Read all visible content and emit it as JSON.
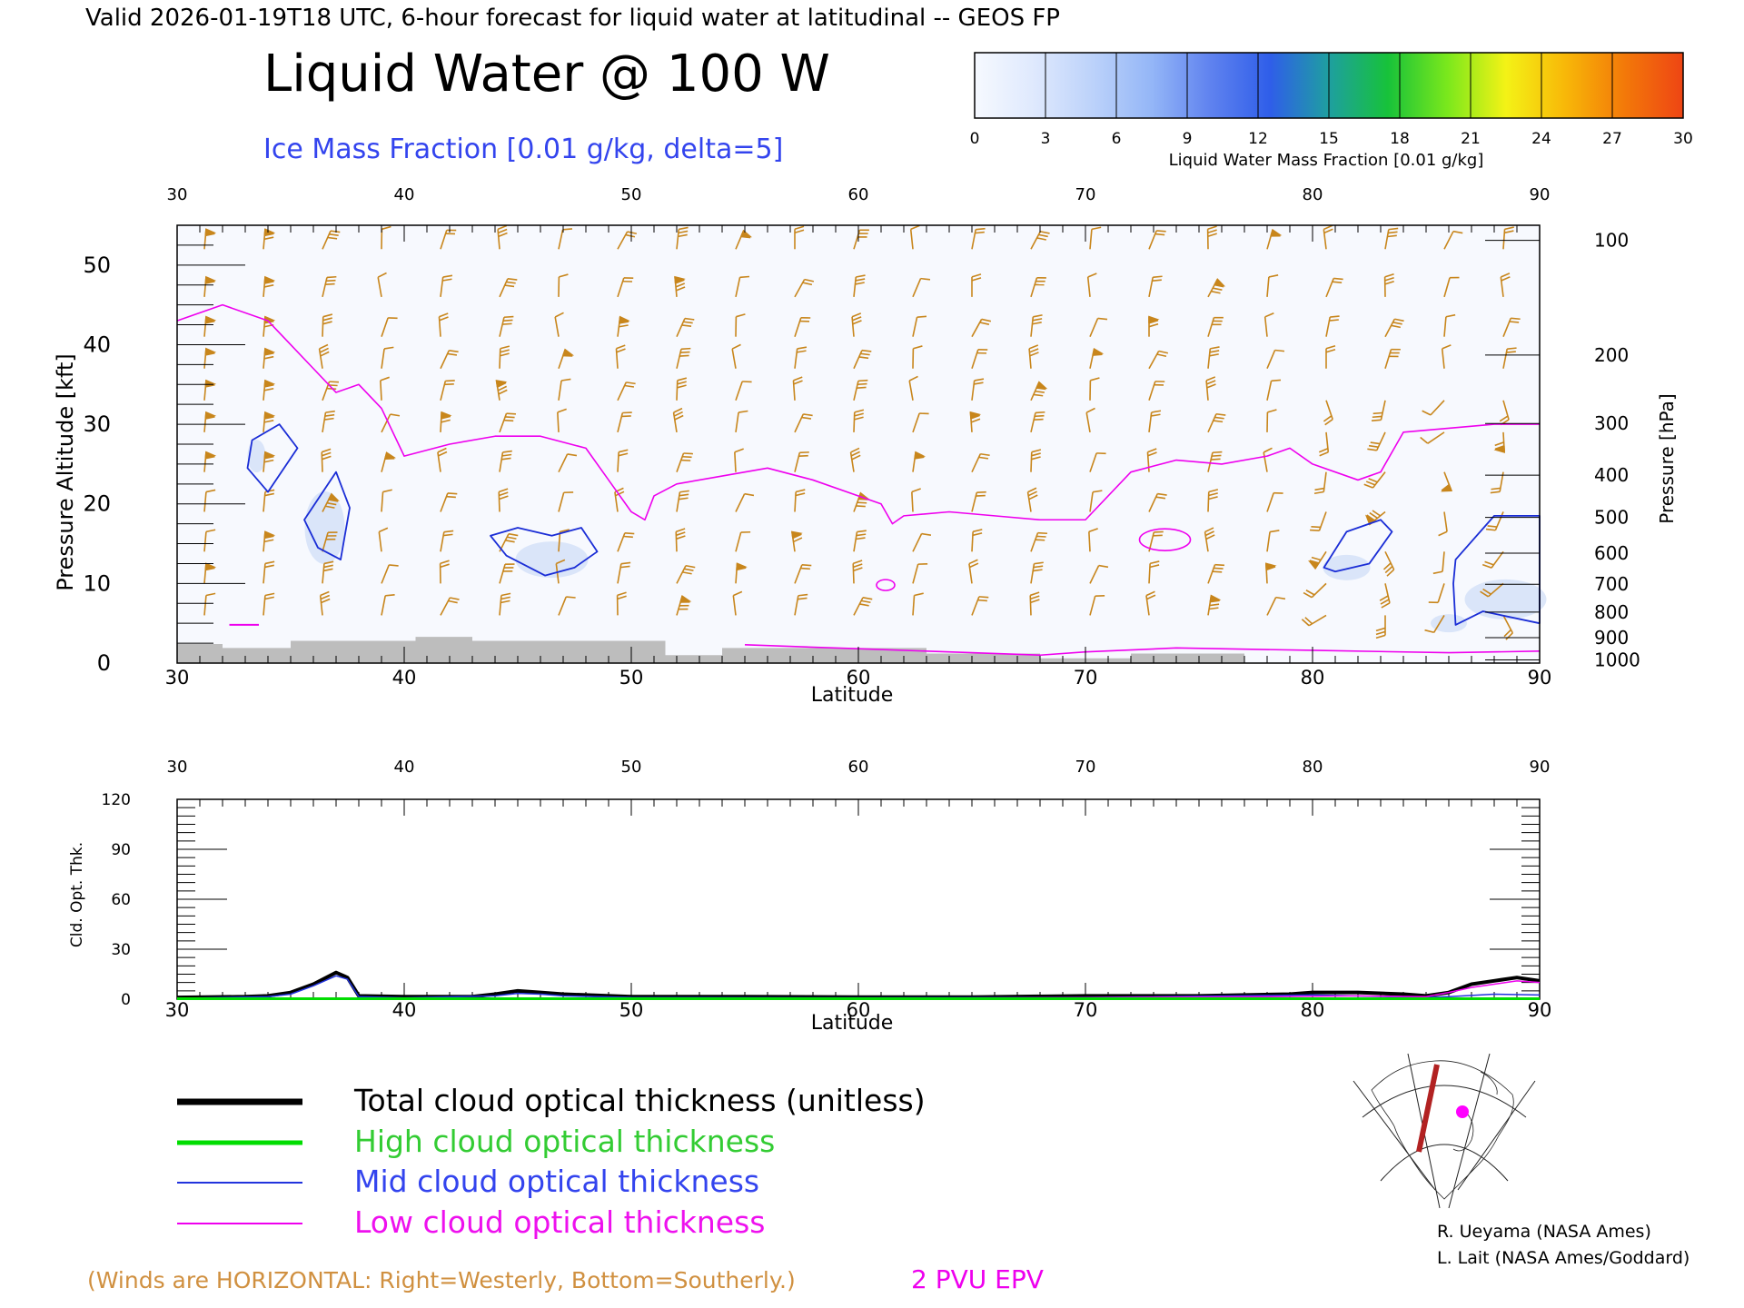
{
  "header": {
    "valid_line": "Valid 2026-01-19T18 UTC, 6-hour forecast for liquid water at latitudinal -- GEOS FP",
    "main_title": "Liquid Water @ 100 W",
    "subtitle": "Ice Mass Fraction [0.01 g/kg, delta=5]"
  },
  "colorbar": {
    "ticks": [
      "0",
      "3",
      "6",
      "9",
      "12",
      "15",
      "18",
      "21",
      "24",
      "27",
      "30"
    ],
    "label": "Liquid Water Mass Fraction [0.01 g/kg]",
    "colors": [
      "#f6f9ff",
      "#dfe9fd",
      "#bcd2fa",
      "#94b6f7",
      "#5f82ef",
      "#2f5ee9",
      "#1e9fa0",
      "#17c23a",
      "#7ae81c",
      "#f4f216",
      "#f8b808",
      "#f37909",
      "#ee4514"
    ]
  },
  "chart_data": [
    {
      "type": "contour-section",
      "xlabel": "Latitude",
      "ylabel": "Pressure Altitude [kft]",
      "y2label": "Pressure [hPa]",
      "xlim": [
        30,
        90
      ],
      "ylim": [
        0,
        55
      ],
      "x_ticks": [
        "30",
        "40",
        "50",
        "60",
        "70",
        "80",
        "90"
      ],
      "y_ticks": [
        "0",
        "10",
        "20",
        "30",
        "40",
        "50"
      ],
      "pressure_ticks": [
        {
          "label": "100",
          "kft": 53.1
        },
        {
          "label": "200",
          "kft": 38.7
        },
        {
          "label": "300",
          "kft": 30.1
        },
        {
          "label": "400",
          "kft": 23.6
        },
        {
          "label": "500",
          "kft": 18.3
        },
        {
          "label": "600",
          "kft": 13.8
        },
        {
          "label": "700",
          "kft": 9.9
        },
        {
          "label": "800",
          "kft": 6.4
        },
        {
          "label": "900",
          "kft": 3.2
        },
        {
          "label": "1000",
          "kft": 0.4
        }
      ],
      "epv_2pvu": [
        [
          30,
          43
        ],
        [
          31,
          44
        ],
        [
          32,
          45
        ],
        [
          34,
          43
        ],
        [
          35,
          40
        ],
        [
          36,
          37
        ],
        [
          37,
          34
        ],
        [
          38,
          35
        ],
        [
          39,
          32
        ],
        [
          40,
          26
        ],
        [
          42,
          27.5
        ],
        [
          44,
          28.5
        ],
        [
          46,
          28.5
        ],
        [
          48,
          27
        ],
        [
          49,
          23
        ],
        [
          50,
          19
        ],
        [
          50.6,
          18
        ],
        [
          51,
          21
        ],
        [
          52,
          22.5
        ],
        [
          54,
          23.5
        ],
        [
          56,
          24.5
        ],
        [
          58,
          23
        ],
        [
          60,
          21
        ],
        [
          61,
          20
        ],
        [
          61.5,
          17.5
        ],
        [
          62,
          18.5
        ],
        [
          64,
          19
        ],
        [
          66,
          18.5
        ],
        [
          68,
          18
        ],
        [
          70,
          18
        ],
        [
          72,
          24
        ],
        [
          74,
          25.5
        ],
        [
          76,
          25
        ],
        [
          78,
          26
        ],
        [
          79,
          27
        ],
        [
          80,
          25
        ],
        [
          82,
          23
        ],
        [
          83,
          24
        ],
        [
          84,
          29
        ],
        [
          86,
          29.5
        ],
        [
          88,
          30
        ],
        [
          90,
          30
        ]
      ],
      "epv_2pvu_low": [
        [
          55,
          2.3
        ],
        [
          60,
          1.8
        ],
        [
          65,
          1.3
        ],
        [
          68,
          1
        ],
        [
          70,
          1.4
        ],
        [
          74,
          1.9
        ],
        [
          80,
          1.6
        ],
        [
          86,
          1.3
        ],
        [
          90,
          1.5
        ]
      ],
      "ice_contours": [
        {
          "label": "5",
          "points": [
            [
              33.3,
              28
            ],
            [
              34.5,
              30
            ],
            [
              35.3,
              27
            ],
            [
              34,
              21.5
            ],
            [
              33.1,
              24.5
            ]
          ]
        },
        {
          "label": "5",
          "points": [
            [
              35.6,
              18
            ],
            [
              37,
              24
            ],
            [
              37.6,
              19.5
            ],
            [
              37.2,
              13
            ],
            [
              36.2,
              14.5
            ]
          ]
        },
        {
          "label": "5",
          "points": [
            [
              43.8,
              16
            ],
            [
              45,
              17
            ],
            [
              46.5,
              16
            ],
            [
              47.8,
              17
            ],
            [
              48.5,
              14
            ],
            [
              47.5,
              12
            ],
            [
              46.2,
              11
            ],
            [
              44.5,
              13.5
            ]
          ]
        },
        {
          "label": "5",
          "points": [
            [
              80.5,
              12
            ],
            [
              81.5,
              16.5
            ],
            [
              83,
              18
            ],
            [
              83.5,
              16.5
            ],
            [
              82.5,
              12.5
            ],
            [
              81,
              11.5
            ]
          ]
        },
        {
          "label": "5",
          "points": [
            [
              86.3,
              13
            ],
            [
              88,
              18.5
            ],
            [
              90,
              18.5
            ],
            [
              90,
              5
            ],
            [
              87.5,
              6.5
            ],
            [
              86.3,
              4.8
            ],
            [
              86.2,
              10
            ]
          ]
        }
      ],
      "terrain": [
        [
          30,
          2.4
        ],
        [
          32,
          2.4
        ],
        [
          32,
          1.9
        ],
        [
          35,
          1.9
        ],
        [
          35,
          2.8
        ],
        [
          40.5,
          2.8
        ],
        [
          40.5,
          3.3
        ],
        [
          43,
          3.3
        ],
        [
          43,
          2.8
        ],
        [
          51.5,
          2.8
        ],
        [
          51.5,
          1
        ],
        [
          54,
          1
        ],
        [
          54,
          1.9
        ],
        [
          63,
          1.9
        ],
        [
          63,
          1.2
        ],
        [
          68,
          1.2
        ],
        [
          68,
          0.6
        ],
        [
          72,
          0.6
        ],
        [
          72,
          1.2
        ],
        [
          77,
          1.2
        ],
        [
          77,
          0
        ],
        [
          90,
          0
        ]
      ],
      "wind_note": "(Winds are HORIZONTAL: Right=Westerly, Bottom=Southerly.)",
      "epv_label": "2 PVU EPV"
    },
    {
      "type": "line",
      "xlabel": "Latitude",
      "ylabel": "Cld. Opt. Thk.",
      "xlim": [
        30,
        90
      ],
      "ylim": [
        0,
        120
      ],
      "x_ticks": [
        "30",
        "40",
        "50",
        "60",
        "70",
        "80",
        "90"
      ],
      "y_ticks": [
        "0",
        "30",
        "60",
        "90",
        "120"
      ],
      "series": [
        {
          "name": "Total cloud optical thickness (unitless)",
          "color": "#000000",
          "width": 4,
          "x": [
            30,
            33,
            34,
            35,
            36,
            37,
            37.5,
            38,
            40,
            43,
            44,
            45,
            46,
            47,
            50,
            55,
            60,
            65,
            70,
            75,
            79,
            80,
            82,
            84,
            85,
            86,
            87,
            88,
            89,
            90
          ],
          "y": [
            1,
            1.5,
            2,
            4,
            9,
            16,
            13,
            2,
            1.5,
            1.5,
            3,
            5,
            4,
            3,
            1.5,
            1.5,
            1.2,
            1.2,
            2,
            2,
            3,
            4,
            4,
            3,
            2,
            4,
            9,
            11,
            13,
            11
          ]
        },
        {
          "name": "High cloud optical thickness",
          "color": "#00dd00",
          "width": 3,
          "x": [
            30,
            90
          ],
          "y": [
            0.3,
            0.3
          ]
        },
        {
          "name": "Mid cloud optical thickness",
          "color": "#2233dd",
          "width": 1.5,
          "x": [
            30,
            34,
            35,
            36,
            37,
            37.5,
            38,
            40,
            44,
            45,
            46,
            47,
            50,
            60,
            70,
            80,
            85,
            86,
            88,
            90
          ],
          "y": [
            0.5,
            1.5,
            3,
            8,
            14,
            12,
            1.5,
            0.8,
            2,
            3.5,
            3,
            2,
            1,
            0.8,
            1,
            2.5,
            1,
            1.5,
            3,
            2.5
          ]
        },
        {
          "name": "Low cloud optical thickness",
          "color": "#ee00ee",
          "width": 1.5,
          "x": [
            30,
            40,
            50,
            60,
            70,
            78,
            82,
            85,
            86,
            87,
            88,
            89,
            90
          ],
          "y": [
            0.3,
            0.4,
            0.5,
            0.5,
            0.9,
            1.5,
            2,
            1.5,
            4,
            7,
            9,
            11,
            10
          ]
        }
      ]
    }
  ],
  "legend": [
    {
      "label": "Total cloud optical thickness (unitless)",
      "color": "#000000",
      "text_color": "#000000"
    },
    {
      "label": "High cloud optical thickness",
      "color": "#00dd00",
      "text_color": "#33cc33"
    },
    {
      "label": "Mid cloud optical thickness",
      "color": "#2233dd",
      "text_color": "#3344ee"
    },
    {
      "label": "Low cloud optical thickness",
      "color": "#ee00ee",
      "text_color": "#ee11ee"
    }
  ],
  "credits": [
    "R. Ueyama (NASA Ames)",
    "L. Lait (NASA Ames/Goddard)"
  ],
  "colors": {
    "epv": "#ee00ee",
    "ice": "#1a2dd6",
    "wind": "#c8861c",
    "terrain": "#bdbdbd",
    "section_line": "#b22222",
    "marker": "#ff00ff"
  }
}
